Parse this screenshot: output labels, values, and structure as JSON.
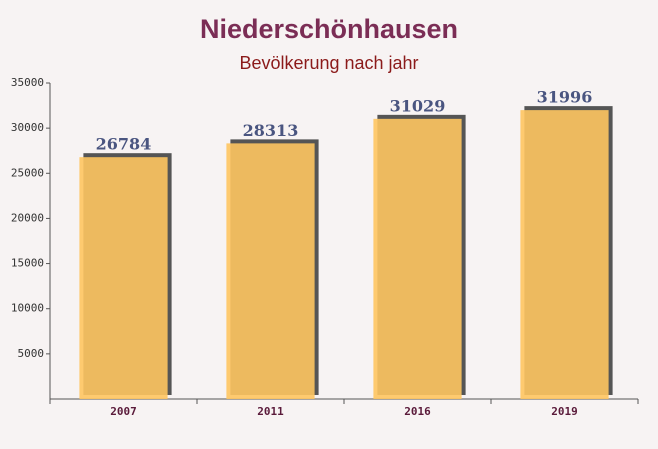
{
  "chart_data": {
    "type": "bar",
    "title": "Niederschönhausen",
    "subtitle": "Bevölkerung nach jahr",
    "categories": [
      "2007",
      "2011",
      "2016",
      "2019"
    ],
    "values": [
      26784,
      28313,
      31029,
      31996
    ],
    "color": "#fec561",
    "ylim": [
      0,
      35000
    ],
    "yticks": [
      5000,
      10000,
      15000,
      20000,
      25000,
      30000,
      35000
    ],
    "grid": false
  }
}
